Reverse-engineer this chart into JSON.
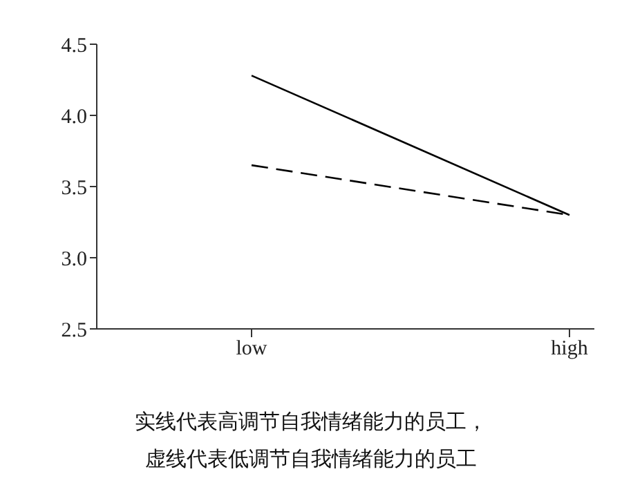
{
  "chart_data": {
    "type": "line",
    "categories": [
      "low",
      "high"
    ],
    "series": [
      {
        "color": "#000000",
        "line_style": "solid",
        "values": [
          4.28,
          3.3
        ]
      },
      {
        "color": "#000000",
        "line_style": "dashed",
        "values": [
          3.65,
          3.3
        ]
      }
    ],
    "ylim": [
      2.5,
      4.5
    ],
    "yticks": [
      {
        "value": 2.5,
        "label": "2.5"
      },
      {
        "value": 3,
        "label": "3.0"
      },
      {
        "value": 3.5,
        "label": "3.5"
      },
      {
        "value": 4,
        "label": "4.0"
      },
      {
        "value": 4.5,
        "label": "4.5"
      }
    ],
    "marker": "none",
    "annotations": [
      "实线代表高调节自我情绪能力的员工，",
      "虚线代表低调节自我情绪能力的员工"
    ]
  }
}
